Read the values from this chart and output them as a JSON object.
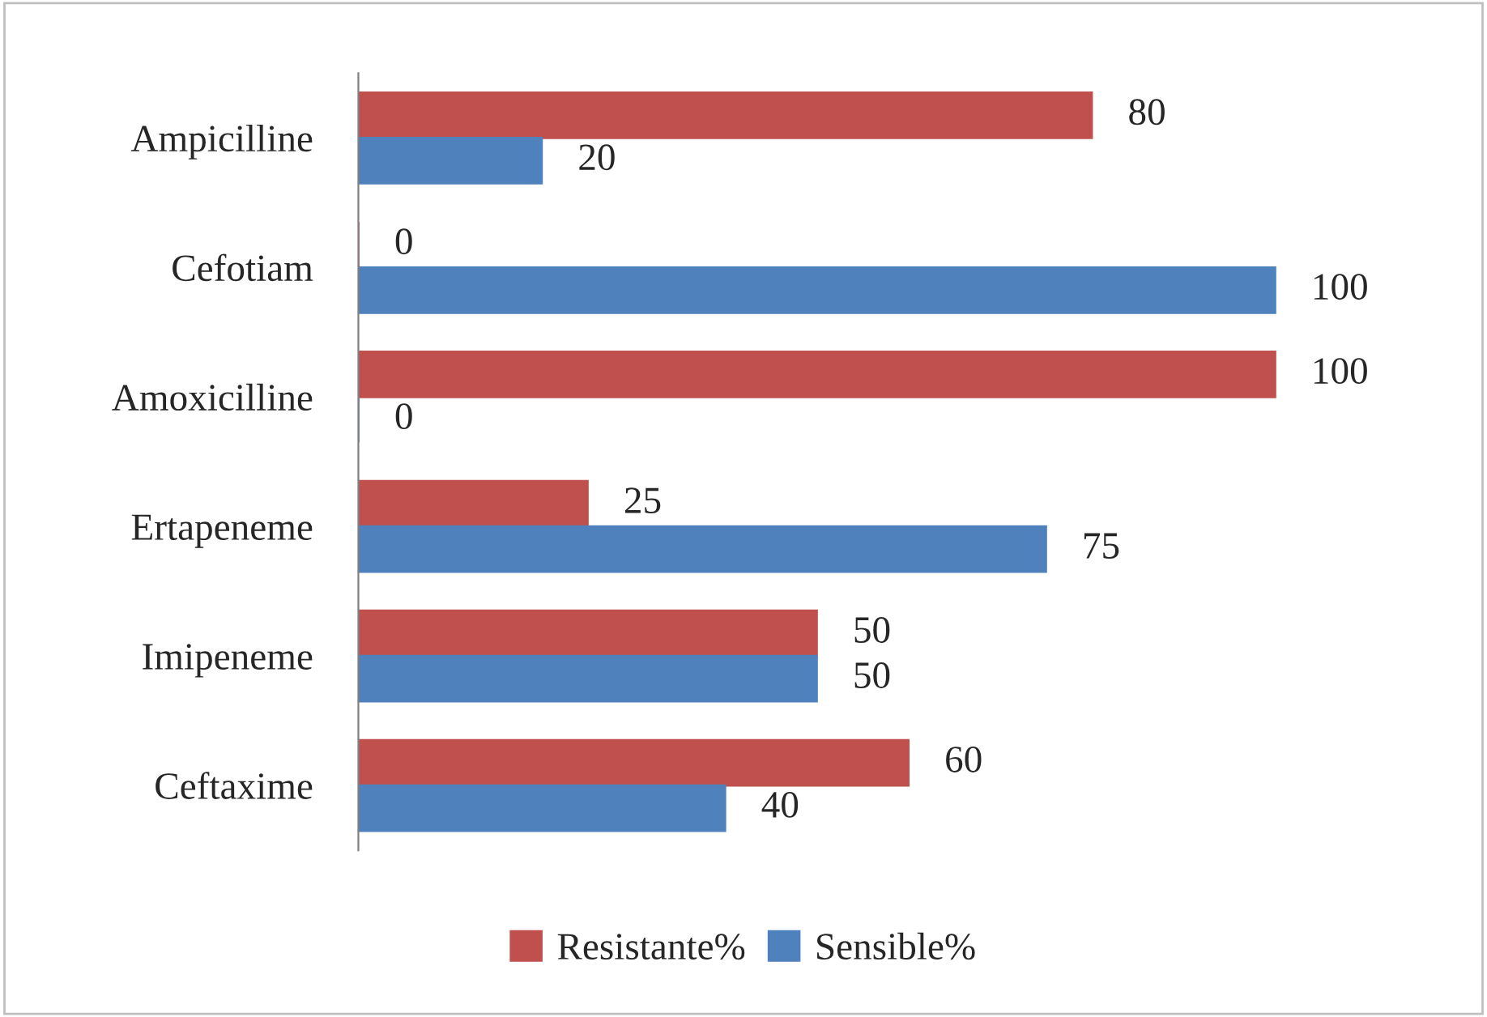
{
  "chart_data": {
    "type": "bar",
    "orientation": "horizontal",
    "categories": [
      "Ampicilline",
      "Cefotiam",
      "Amoxicilline",
      "Ertapeneme",
      "Imipeneme",
      "Ceftaxime"
    ],
    "series": [
      {
        "name": "Resistante%",
        "color": "#c0504d",
        "values": [
          80,
          0,
          100,
          25,
          50,
          60
        ]
      },
      {
        "name": "Sensible%",
        "color": "#4f81bd",
        "values": [
          20,
          100,
          0,
          75,
          50,
          40
        ]
      }
    ],
    "data_labels": true,
    "legend": "bottom",
    "grid": false,
    "tick_labels": "y"
  }
}
